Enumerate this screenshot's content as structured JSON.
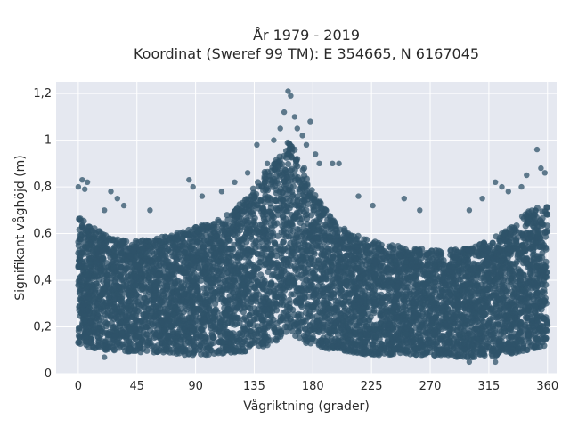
{
  "chart_data": {
    "type": "scatter",
    "title": [
      "År 1979 - 2019",
      "Koordinat (Sweref 99 TM): E 354665, N 6167045"
    ],
    "xlabel": "Vågriktning (grader)",
    "ylabel": "Signifikant våghöjd (m)",
    "xlim": [
      -17,
      367
    ],
    "ylim": [
      0,
      1.25
    ],
    "xticks": [
      0,
      45,
      90,
      135,
      180,
      225,
      270,
      315,
      360
    ],
    "xtick_labels": [
      "0",
      "45",
      "90",
      "135",
      "180",
      "225",
      "270",
      "315",
      "360"
    ],
    "yticks": [
      0,
      0.2,
      0.4,
      0.6,
      0.8,
      1.0,
      1.2
    ],
    "ytick_labels": [
      "0",
      "0,2",
      "0,4",
      "0,6",
      "0,8",
      "1",
      "1,2"
    ],
    "grid": true,
    "colors": {
      "marker": "#2f5369",
      "plot_bg": "#e5e8f0",
      "grid": "#ffffff"
    },
    "envelope": {
      "direction": [
        0,
        10,
        20,
        30,
        45,
        60,
        75,
        90,
        105,
        120,
        135,
        145,
        155,
        162,
        170,
        180,
        195,
        210,
        225,
        240,
        255,
        270,
        285,
        300,
        315,
        330,
        345,
        360
      ],
      "typical_max": [
        0.68,
        0.63,
        0.6,
        0.58,
        0.57,
        0.58,
        0.6,
        0.63,
        0.65,
        0.7,
        0.8,
        0.88,
        0.95,
        1.0,
        0.93,
        0.78,
        0.66,
        0.6,
        0.57,
        0.55,
        0.54,
        0.53,
        0.53,
        0.54,
        0.57,
        0.62,
        0.7,
        0.72
      ],
      "typical_min": [
        0.12,
        0.11,
        0.1,
        0.1,
        0.09,
        0.09,
        0.08,
        0.08,
        0.08,
        0.09,
        0.1,
        0.12,
        0.14,
        0.16,
        0.14,
        0.12,
        0.1,
        0.09,
        0.08,
        0.08,
        0.08,
        0.08,
        0.07,
        0.07,
        0.07,
        0.08,
        0.1,
        0.12
      ]
    },
    "outliers": [
      {
        "x": 0,
        "y": 0.8
      },
      {
        "x": 3,
        "y": 0.83
      },
      {
        "x": 5,
        "y": 0.79
      },
      {
        "x": 7,
        "y": 0.82
      },
      {
        "x": 20,
        "y": 0.7
      },
      {
        "x": 25,
        "y": 0.78
      },
      {
        "x": 30,
        "y": 0.75
      },
      {
        "x": 35,
        "y": 0.72
      },
      {
        "x": 55,
        "y": 0.7
      },
      {
        "x": 85,
        "y": 0.83
      },
      {
        "x": 88,
        "y": 0.8
      },
      {
        "x": 95,
        "y": 0.76
      },
      {
        "x": 110,
        "y": 0.78
      },
      {
        "x": 120,
        "y": 0.82
      },
      {
        "x": 130,
        "y": 0.86
      },
      {
        "x": 137,
        "y": 0.98
      },
      {
        "x": 145,
        "y": 0.9
      },
      {
        "x": 150,
        "y": 1.0
      },
      {
        "x": 155,
        "y": 1.05
      },
      {
        "x": 158,
        "y": 1.12
      },
      {
        "x": 161,
        "y": 1.21
      },
      {
        "x": 163,
        "y": 1.19
      },
      {
        "x": 166,
        "y": 1.1
      },
      {
        "x": 168,
        "y": 1.05
      },
      {
        "x": 172,
        "y": 1.02
      },
      {
        "x": 175,
        "y": 0.98
      },
      {
        "x": 178,
        "y": 1.08
      },
      {
        "x": 182,
        "y": 0.94
      },
      {
        "x": 185,
        "y": 0.9
      },
      {
        "x": 195,
        "y": 0.9
      },
      {
        "x": 200,
        "y": 0.9
      },
      {
        "x": 215,
        "y": 0.76
      },
      {
        "x": 226,
        "y": 0.72
      },
      {
        "x": 250,
        "y": 0.75
      },
      {
        "x": 262,
        "y": 0.7
      },
      {
        "x": 300,
        "y": 0.7
      },
      {
        "x": 310,
        "y": 0.75
      },
      {
        "x": 320,
        "y": 0.82
      },
      {
        "x": 325,
        "y": 0.8
      },
      {
        "x": 330,
        "y": 0.78
      },
      {
        "x": 340,
        "y": 0.8
      },
      {
        "x": 344,
        "y": 0.85
      },
      {
        "x": 352,
        "y": 0.96
      },
      {
        "x": 355,
        "y": 0.88
      },
      {
        "x": 358,
        "y": 0.86
      },
      {
        "x": 20,
        "y": 0.07
      },
      {
        "x": 300,
        "y": 0.05
      },
      {
        "x": 320,
        "y": 0.05
      }
    ]
  }
}
